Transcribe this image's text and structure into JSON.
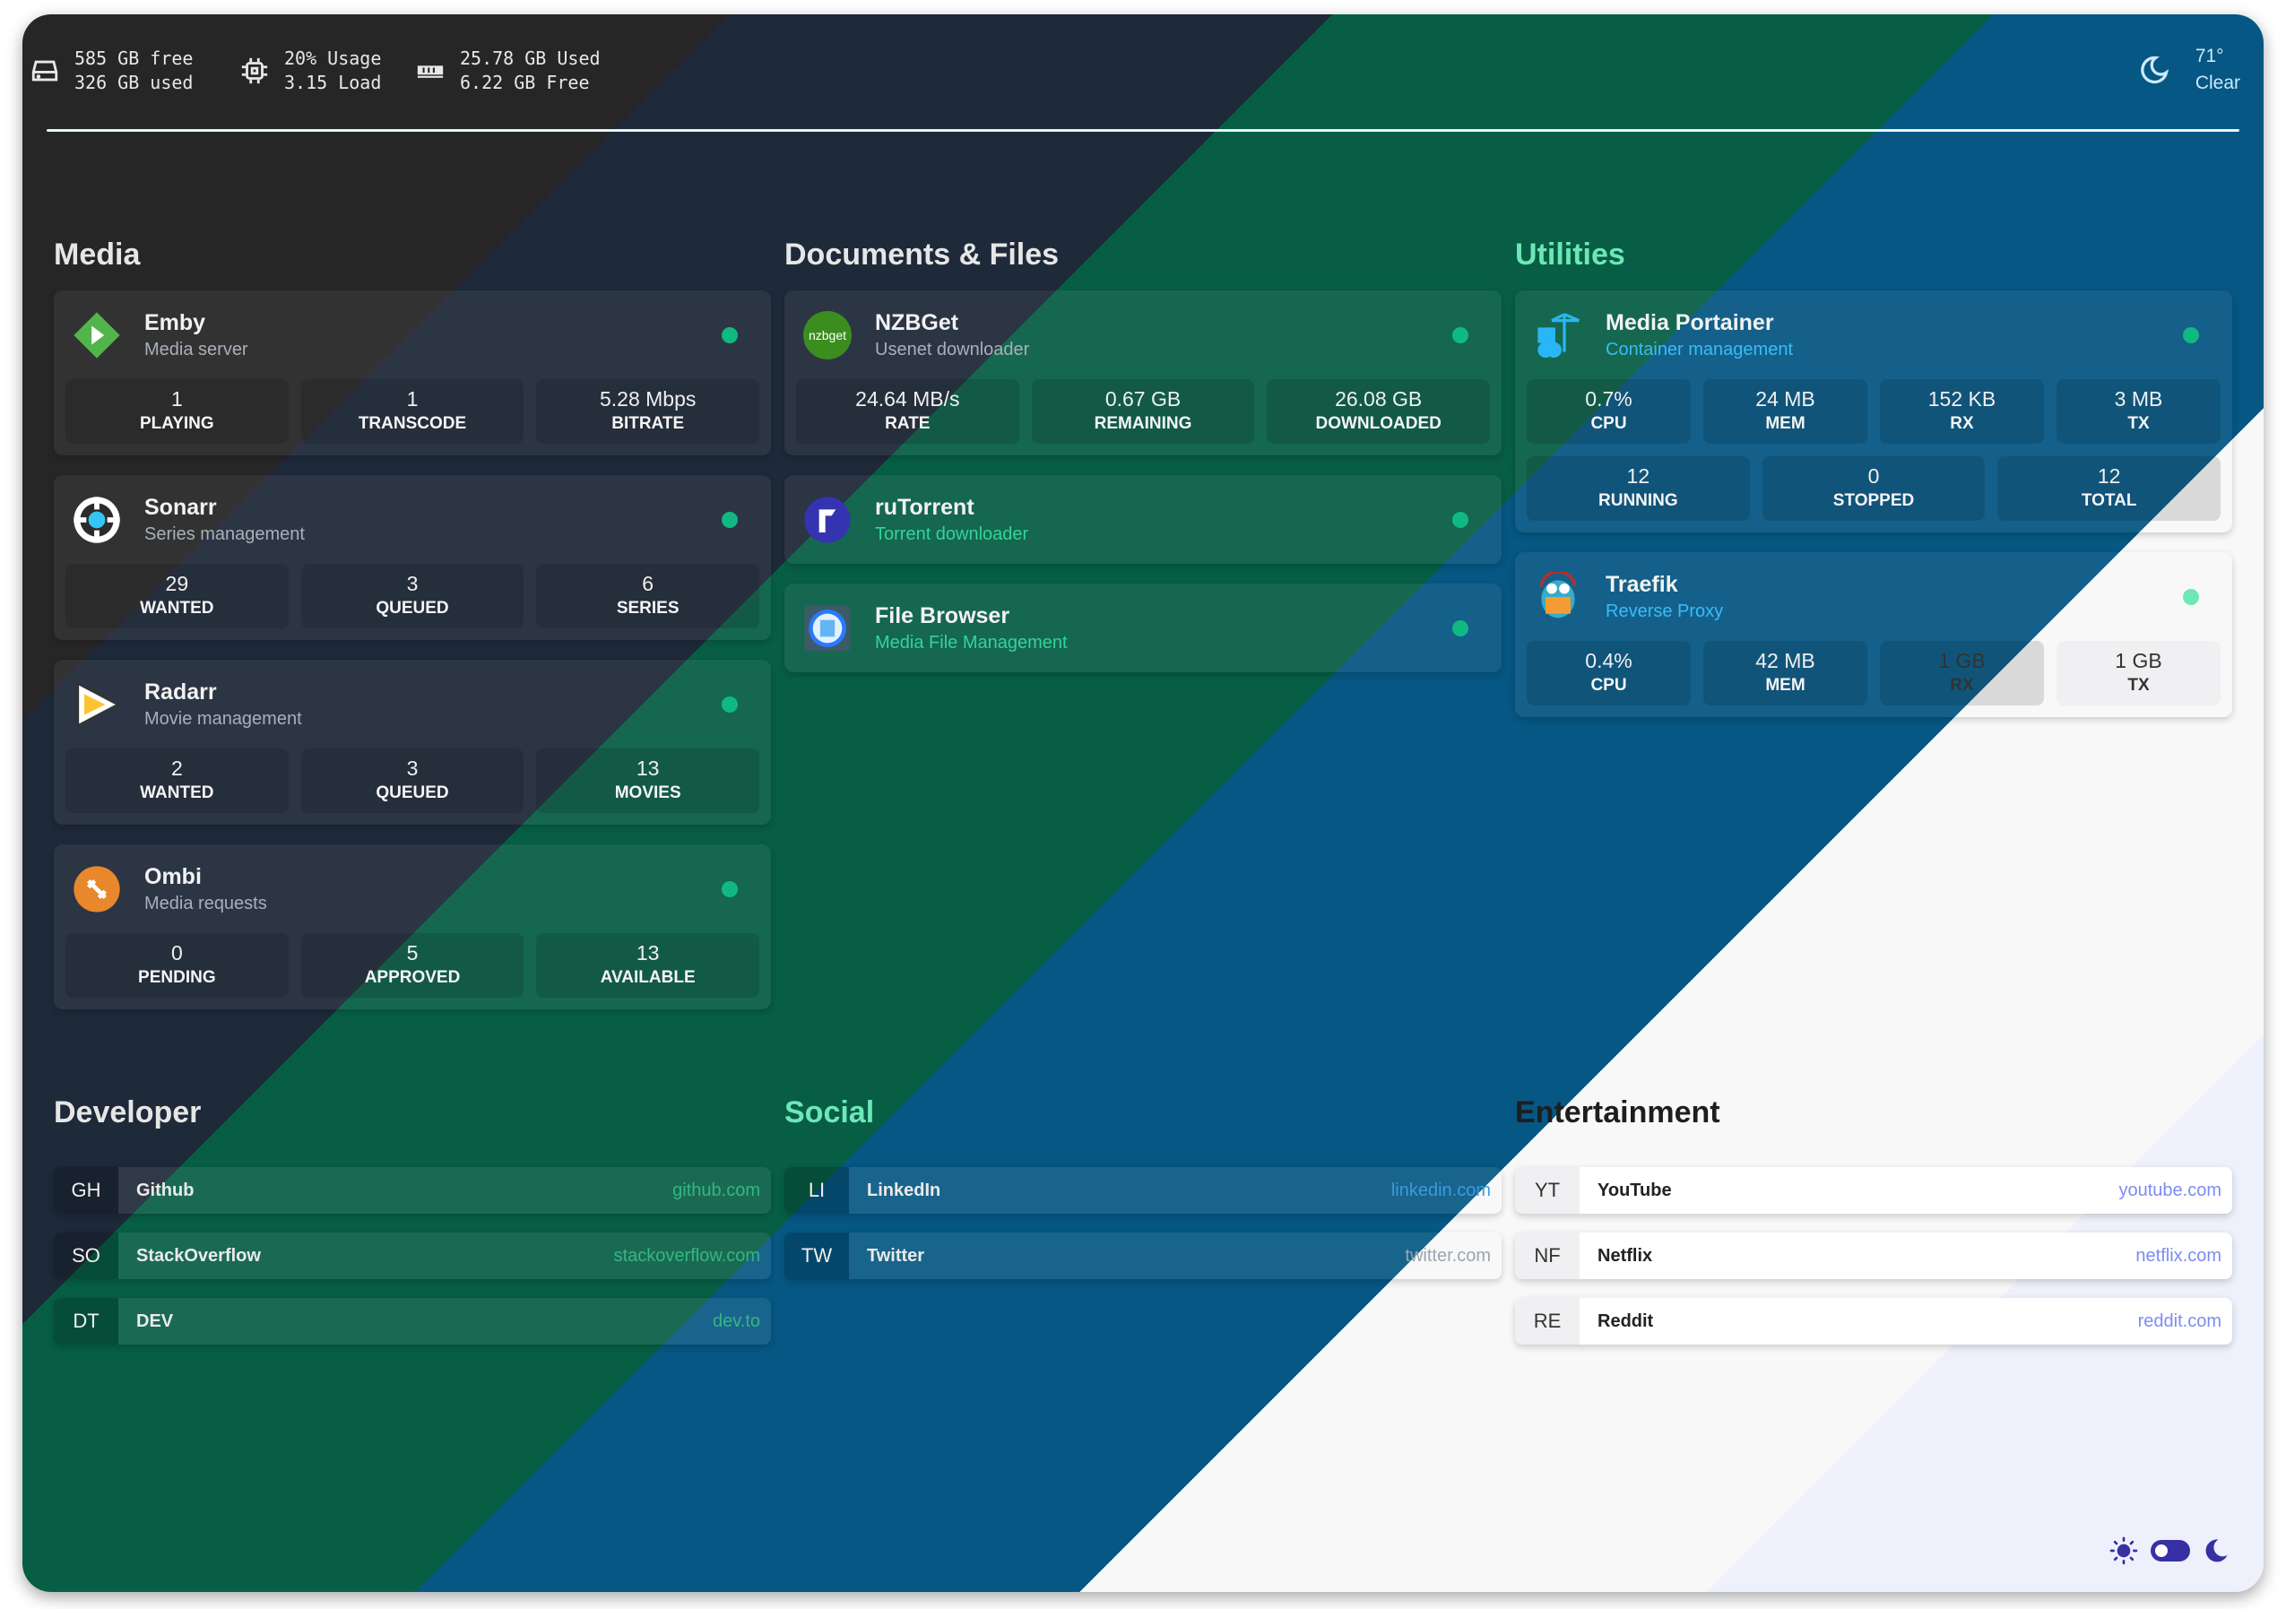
{
  "header": {
    "disk": {
      "line1": "585 GB free",
      "line2": "326 GB used",
      "icon": "hard-drive-icon"
    },
    "cpu": {
      "line1": "20% Usage",
      "line2": "3.15 Load",
      "icon": "cpu-icon"
    },
    "memory": {
      "line1": "25.78 GB Used",
      "line2": "6.22 GB Free",
      "icon": "memory-icon"
    },
    "weather": {
      "temp": "71°",
      "condition": "Clear",
      "icon": "moon-clear-icon"
    }
  },
  "colors": {
    "status_online": "#10b981",
    "accent_green": "#34d399",
    "toggle": "#3730a3"
  },
  "media": {
    "title": "Media",
    "services": [
      {
        "name": "Emby",
        "desc": "Media server",
        "stats": [
          {
            "v": "1",
            "l": "PLAYING"
          },
          {
            "v": "1",
            "l": "TRANSCODE"
          },
          {
            "v": "5.28 Mbps",
            "l": "BITRATE"
          }
        ]
      },
      {
        "name": "Sonarr",
        "desc": "Series management",
        "stats": [
          {
            "v": "29",
            "l": "WANTED"
          },
          {
            "v": "3",
            "l": "QUEUED"
          },
          {
            "v": "6",
            "l": "SERIES"
          }
        ]
      },
      {
        "name": "Radarr",
        "desc": "Movie management",
        "stats": [
          {
            "v": "2",
            "l": "WANTED"
          },
          {
            "v": "3",
            "l": "QUEUED"
          },
          {
            "v": "13",
            "l": "MOVIES"
          }
        ]
      },
      {
        "name": "Ombi",
        "desc": "Media requests",
        "stats": [
          {
            "v": "0",
            "l": "PENDING"
          },
          {
            "v": "5",
            "l": "APPROVED"
          },
          {
            "v": "13",
            "l": "AVAILABLE"
          }
        ]
      }
    ]
  },
  "documents": {
    "title": "Documents & Files",
    "services": [
      {
        "name": "NZBGet",
        "desc": "Usenet downloader",
        "logo_text": "nzbget",
        "stats": [
          {
            "v": "24.64 MB/s",
            "l": "RATE"
          },
          {
            "v": "0.67 GB",
            "l": "REMAINING"
          },
          {
            "v": "26.08 GB",
            "l": "DOWNLOADED"
          }
        ]
      },
      {
        "name": "ruTorrent",
        "desc": "Torrent downloader"
      },
      {
        "name": "File Browser",
        "desc": "Media File Management"
      }
    ]
  },
  "utilities": {
    "title": "Utilities",
    "services": [
      {
        "name": "Media Portainer",
        "desc": "Container management",
        "stats": [
          {
            "v": "0.7%",
            "l": "CPU"
          },
          {
            "v": "24 MB",
            "l": "MEM"
          },
          {
            "v": "152 KB",
            "l": "RX"
          },
          {
            "v": "3 MB",
            "l": "TX"
          }
        ],
        "stats2": [
          {
            "v": "12",
            "l": "RUNNING"
          },
          {
            "v": "0",
            "l": "STOPPED"
          },
          {
            "v": "12",
            "l": "TOTAL"
          }
        ]
      },
      {
        "name": "Traefik",
        "desc": "Reverse Proxy",
        "stats": [
          {
            "v": "0.4%",
            "l": "CPU"
          },
          {
            "v": "42 MB",
            "l": "MEM"
          },
          {
            "v": "1 GB",
            "l": "RX"
          },
          {
            "v": "1 GB",
            "l": "TX"
          }
        ]
      }
    ]
  },
  "developer": {
    "title": "Developer",
    "bookmarks": [
      {
        "abbr": "GH",
        "name": "Github",
        "url": "github.com"
      },
      {
        "abbr": "SO",
        "name": "StackOverflow",
        "url": "stackoverflow.com"
      },
      {
        "abbr": "DT",
        "name": "DEV",
        "url": "dev.to"
      }
    ]
  },
  "social": {
    "title": "Social",
    "bookmarks": [
      {
        "abbr": "LI",
        "name": "LinkedIn",
        "url": "linkedin.com"
      },
      {
        "abbr": "TW",
        "name": "Twitter",
        "url": "twitter.com"
      }
    ]
  },
  "entertainment": {
    "title": "Entertainment",
    "bookmarks": [
      {
        "abbr": "YT",
        "name": "YouTube",
        "url": "youtube.com"
      },
      {
        "abbr": "NF",
        "name": "Netflix",
        "url": "netflix.com"
      },
      {
        "abbr": "RE",
        "name": "Reddit",
        "url": "reddit.com"
      }
    ]
  },
  "theme_toggle": {
    "mode": "dark",
    "light_icon": "sun-icon",
    "dark_icon": "moon-icon"
  }
}
